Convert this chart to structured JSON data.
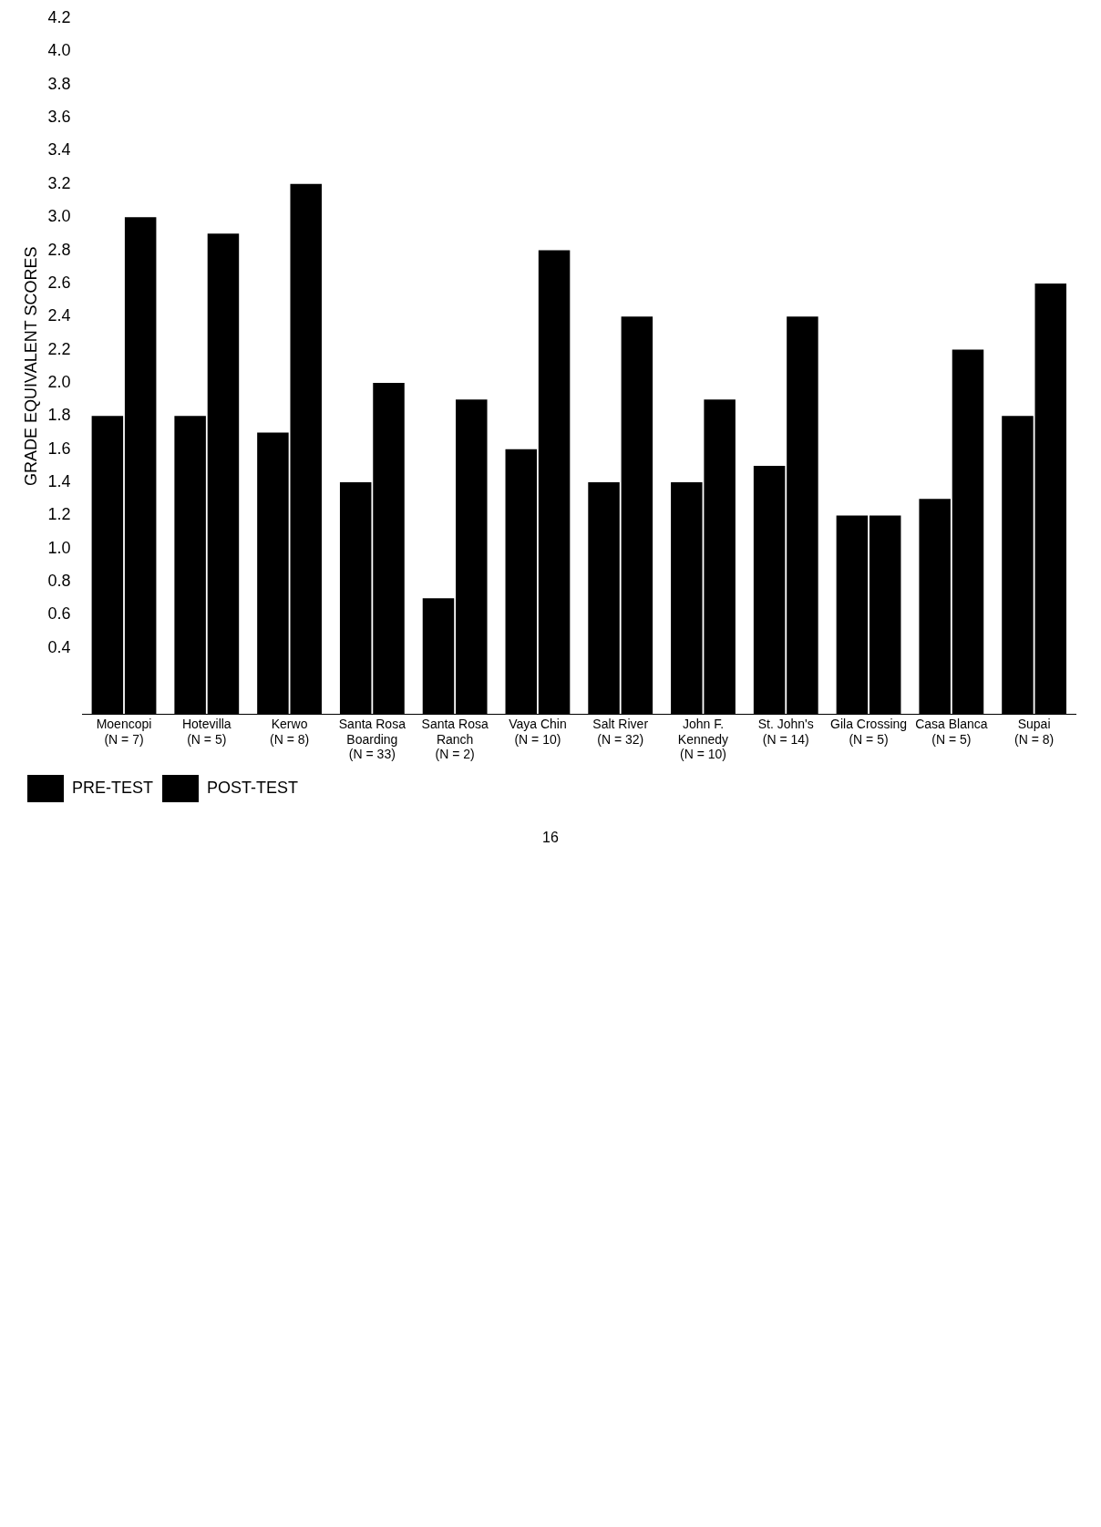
{
  "chart_data": {
    "type": "bar",
    "ylabel": "GRADE EQUIVALENT SCORES",
    "categories": [
      "Moencopi (N = 7)",
      "Hotevilla (N = 5)",
      "Kerwo (N = 8)",
      "Santa Rosa Boarding (N = 33)",
      "Santa Rosa Ranch (N = 2)",
      "Vaya Chin (N = 10)",
      "Salt River (N = 32)",
      "John F. Kennedy (N = 10)",
      "St. John's (N = 14)",
      "Gila Crossing (N = 5)",
      "Casa Blanca (N = 5)",
      "Supai (N = 8)"
    ],
    "series": [
      {
        "name": "PRE-TEST",
        "color": "#000000",
        "values": [
          1.8,
          1.8,
          1.7,
          1.4,
          0.7,
          1.6,
          1.4,
          1.4,
          1.5,
          1.2,
          1.3,
          1.8
        ]
      },
      {
        "name": "POST-TEST",
        "color": "#000000",
        "values": [
          3.0,
          2.9,
          3.2,
          2.0,
          1.9,
          2.8,
          2.4,
          1.9,
          2.4,
          1.2,
          2.2,
          2.6
        ]
      }
    ],
    "ylim": [
      0,
      4.2
    ],
    "yticks": [
      0.4,
      0.6,
      0.8,
      {
        "value": 1,
        "label": "1.0"
      },
      1.2,
      1.4,
      1.6,
      1.8,
      {
        "value": 2,
        "label": "2.0"
      },
      2.2,
      2.4,
      2.6,
      2.8,
      {
        "value": 3,
        "label": "3.0"
      },
      3.2,
      3.4,
      3.6,
      3.8,
      {
        "value": 4,
        "label": "4.0"
      },
      4.2
    ],
    "grid": false,
    "legend": "bottom",
    "annotations": [
      "16"
    ]
  }
}
